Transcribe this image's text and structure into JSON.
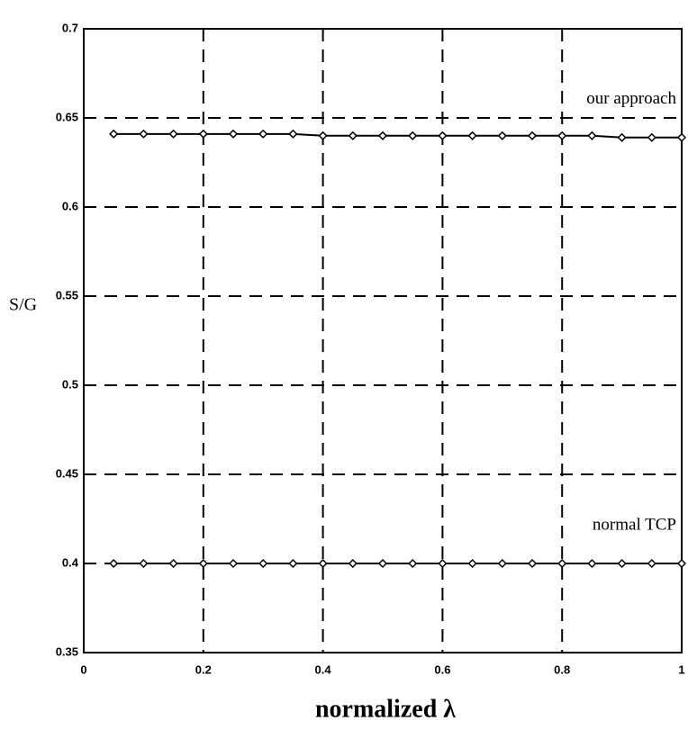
{
  "chart_data": {
    "type": "line",
    "x_label": "normalized λ",
    "y_label": "S/G",
    "x": [
      0.05,
      0.1,
      0.15,
      0.2,
      0.25,
      0.3,
      0.35,
      0.4,
      0.45,
      0.5,
      0.55,
      0.6,
      0.65,
      0.7,
      0.75,
      0.8,
      0.85,
      0.9,
      0.95,
      1.0
    ],
    "series": [
      {
        "name": "our approach",
        "color": "#000000",
        "values": [
          0.641,
          0.641,
          0.641,
          0.641,
          0.641,
          0.641,
          0.641,
          0.64,
          0.64,
          0.64,
          0.64,
          0.64,
          0.64,
          0.64,
          0.64,
          0.64,
          0.64,
          0.639,
          0.639,
          0.639
        ]
      },
      {
        "name": "normal TCP",
        "color": "#000000",
        "values": [
          0.4,
          0.4,
          0.4,
          0.4,
          0.4,
          0.4,
          0.4,
          0.4,
          0.4,
          0.4,
          0.4,
          0.4,
          0.4,
          0.4,
          0.4,
          0.4,
          0.4,
          0.4,
          0.4,
          0.4
        ]
      }
    ],
    "xlim": [
      0,
      1
    ],
    "ylim": [
      0.35,
      0.7
    ],
    "xticks": [
      0,
      0.2,
      0.4,
      0.6,
      0.8,
      1
    ],
    "yticks": [
      0.35,
      0.4,
      0.45,
      0.5,
      0.55,
      0.6,
      0.65,
      0.7
    ],
    "grid": true
  }
}
